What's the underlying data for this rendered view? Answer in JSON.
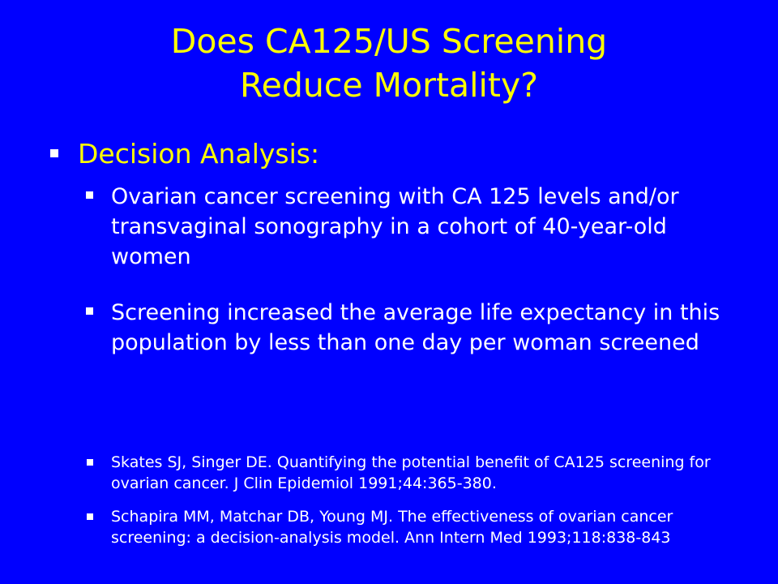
{
  "slide": {
    "title_line1": "Does CA125/US Screening",
    "title_line2": "Reduce Mortality?",
    "heading": "Decision Analysis:",
    "points": [
      "Ovarian cancer screening with CA 125 levels and/or transvaginal sonography in a cohort of 40-year-old women",
      "Screening increased the average life expectancy in this population by less than one day per woman screened"
    ],
    "references": [
      "Skates SJ, Singer DE. Quantifying the potential benefit of CA125 screening for ovarian cancer. J Clin Epidemiol 1991;44:365-380.",
      "Schapira MM, Matchar DB, Young MJ. The effectiveness of ovarian cancer screening: a decision-analysis model. Ann Intern Med 1993;118:838-843"
    ],
    "colors": {
      "background": "#0000ff",
      "title": "#ffff00",
      "body_text": "#ffffff",
      "bullet": "#ffffff"
    }
  }
}
